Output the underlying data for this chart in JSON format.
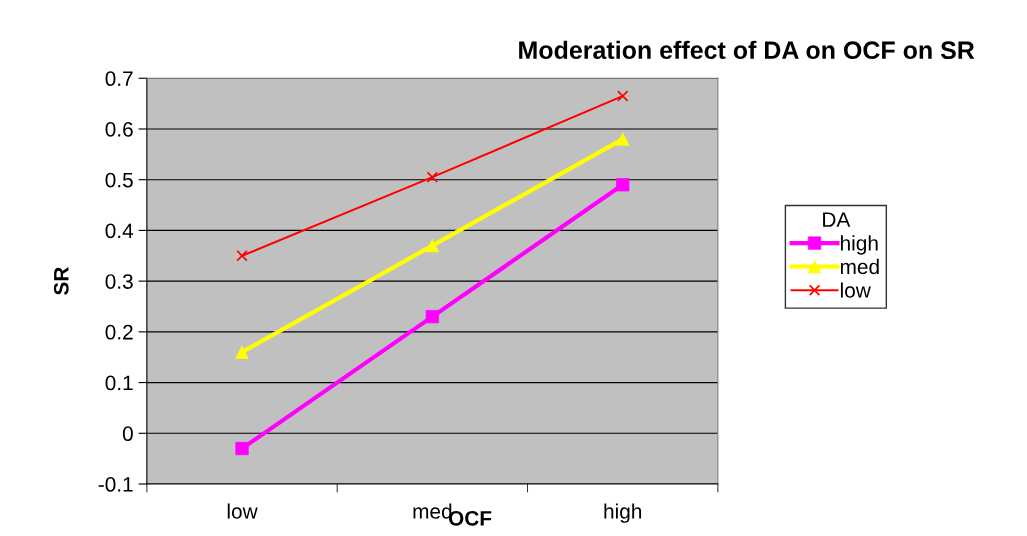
{
  "chart_data": {
    "type": "line",
    "title": "Moderation effect of DA on OCF on SR",
    "xlabel": "OCF",
    "ylabel": "SR",
    "legend_title": "DA",
    "categories": [
      "low",
      "med",
      "high"
    ],
    "series": [
      {
        "name": "high",
        "color": "#ff00ff",
        "values": [
          -0.03,
          0.23,
          0.49
        ],
        "marker": "square"
      },
      {
        "name": "med",
        "color": "#ffff00",
        "values": [
          0.16,
          0.37,
          0.58
        ],
        "marker": "triangle"
      },
      {
        "name": "low",
        "color": "#ff0000",
        "values": [
          0.35,
          0.505,
          0.665
        ],
        "marker": "cross"
      }
    ],
    "ylim": [
      -0.1,
      0.7
    ],
    "yticks": [
      -0.1,
      0,
      0.1,
      0.2,
      0.3,
      0.4,
      0.5,
      0.6,
      0.7
    ],
    "grid": "y",
    "legend": "right",
    "line_style": "solid"
  }
}
